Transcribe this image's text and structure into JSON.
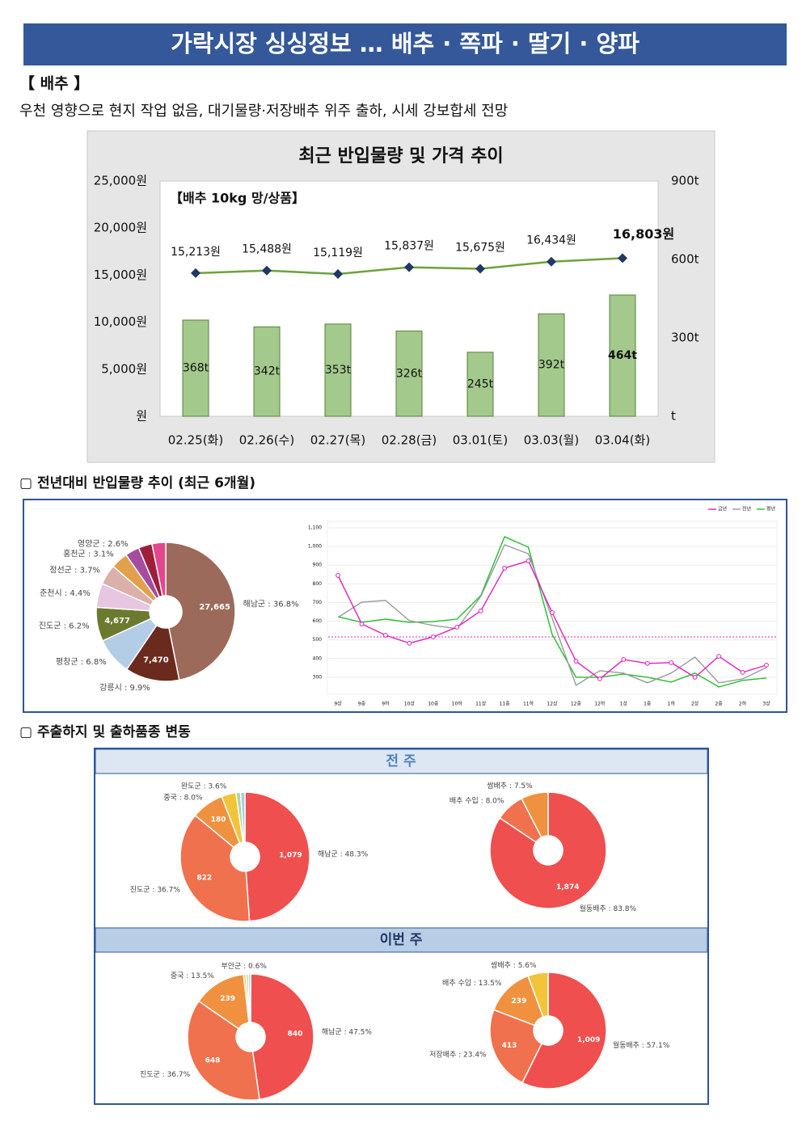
{
  "header": {
    "title": "가락시장 싱싱정보 … 배추 · 쪽파 · 딸기 · 양파"
  },
  "section1": {
    "heading": "【 배추 】",
    "summary": "우천 영향으로 현지 작업 없음, 대기물량·저장배추 위주 출하, 시세 강보합세 전망"
  },
  "section2": {
    "heading": "▢ 전년대비 반입물량 추이 (최근 6개월)"
  },
  "section3": {
    "heading": "▢ 주출하지 및 출하품종 변동",
    "weeks": [
      "전 주",
      "이번 주"
    ]
  },
  "chart_data": [
    {
      "type": "combo",
      "title": "최근 반입물량 및 가격 추이",
      "annotation": "【배추 10kg 망/상품】",
      "categories": [
        "02.25(화)",
        "02.26(수)",
        "02.27(목)",
        "02.28(금)",
        "03.01(토)",
        "03.03(월)",
        "03.04(화)"
      ],
      "series": [
        {
          "type": "bar",
          "axis": "y2",
          "color": "#a3c98c",
          "values": [
            368,
            342,
            353,
            326,
            245,
            392,
            464
          ],
          "value_labels": [
            "368t",
            "342t",
            "353t",
            "326t",
            "245t",
            "392t",
            "464t"
          ]
        },
        {
          "type": "line",
          "color": "#6fa13a",
          "marker_color": "#1f3864",
          "values": [
            15213,
            15488,
            15119,
            15837,
            15675,
            16434,
            16803
          ],
          "value_labels": [
            "15,213원",
            "15,488원",
            "15,119원",
            "15,837원",
            "15,675원",
            "16,434원",
            "16,803원"
          ]
        }
      ],
      "ylim": [
        0,
        25000
      ],
      "yticks": [
        {
          "value": 0,
          "label": "원"
        },
        {
          "value": 5000,
          "label": "5,000원"
        },
        {
          "value": 10000,
          "label": "10,000원"
        },
        {
          "value": 15000,
          "label": "15,000원"
        },
        {
          "value": 20000,
          "label": "20,000원"
        },
        {
          "value": 25000,
          "label": "25,000원"
        }
      ],
      "y2lim": [
        0,
        900
      ],
      "y2ticks": [
        {
          "value": 0,
          "label": "t"
        },
        {
          "value": 300,
          "label": "300t"
        },
        {
          "value": 600,
          "label": "600t"
        },
        {
          "value": 900,
          "label": "900t"
        }
      ]
    },
    {
      "type": "pie",
      "labels": [
        "해남군 : 36.8%",
        "강릉시 : 9.9%",
        "평창군 : 6.8%",
        "진도군 : 6.2%",
        "춘천시 : 4.4%",
        "정선군 : 3.7%",
        "홍천군 : 3.1%",
        "영양군 : 2.6%",
        null,
        null
      ],
      "values": [
        36.8,
        9.9,
        6.8,
        6.2,
        4.4,
        3.7,
        3.1,
        2.6,
        2.5,
        2.5
      ],
      "inner_labels": [
        "27,665",
        "7,470",
        null,
        "4,677",
        null,
        null,
        null,
        null,
        null,
        null
      ],
      "colors": [
        "#9c6a5a",
        "#6b2a1e",
        "#b4cde6",
        "#6b7a2e",
        "#e6c6e0",
        "#dbb0a8",
        "#e2a04a",
        "#a64ca0",
        "#9e1f3a",
        "#e2478e"
      ]
    },
    {
      "type": "line",
      "categories": [
        "9상",
        "9중",
        "9하",
        "10상",
        "10중",
        "10하",
        "11상",
        "11중",
        "11하",
        "12상",
        "12중",
        "12하",
        "1상",
        "1중",
        "1하",
        "2상",
        "2중",
        "2하",
        "3상"
      ],
      "series": [
        {
          "name": "금년",
          "color": "#e020c0",
          "marker": true,
          "values": [
            845,
            585,
            525,
            482,
            516,
            568,
            655,
            884,
            923,
            646,
            386,
            291,
            395,
            374,
            378,
            300,
            412,
            326,
            365
          ]
        },
        {
          "name": "전년",
          "color": "#9a9a9a",
          "values": [
            620,
            702,
            711,
            603,
            577,
            560,
            732,
            1009,
            961,
            616,
            257,
            335,
            322,
            270,
            322,
            408,
            270,
            291,
            352
          ]
        },
        {
          "name": "평년",
          "color": "#22c02a",
          "values": [
            624,
            594,
            611,
            594,
            598,
            611,
            737,
            1052,
            996,
            529,
            300,
            300,
            317,
            300,
            274,
            322,
            248,
            283,
            296
          ]
        }
      ],
      "reference_line": 516,
      "ylim": [
        200,
        1100
      ],
      "yticks": [
        300,
        400,
        500,
        600,
        700,
        800,
        900,
        {
          "value": 1000,
          "label": "1,000"
        },
        {
          "value": 1100,
          "label": "1,100"
        }
      ],
      "grid": true
    },
    {
      "type": "pie",
      "labels": [
        "해남군 : 48.3%",
        "진도군 : 36.7%",
        "중국 : 8.0%",
        "완도군 : 3.6%",
        null,
        null
      ],
      "values": [
        48.3,
        36.7,
        8.0,
        3.6,
        1.1,
        1.1
      ],
      "inner_labels": [
        "1,079",
        "822",
        "180",
        null,
        null,
        null
      ],
      "colors": [
        "#ef4f4f",
        "#f0714d",
        "#f0913f",
        "#f2c43a",
        "#a8d8a0",
        "#a8cce0"
      ]
    },
    {
      "type": "pie",
      "labels": [
        "월동배추 : 83.8%",
        "배추 수입 : 8.0%",
        "쌈배추 : 7.5%"
      ],
      "values": [
        83.8,
        8.0,
        7.5
      ],
      "inner_labels": [
        "1,874",
        null,
        null
      ],
      "colors": [
        "#ef4f4f",
        "#f0714d",
        "#f0913f"
      ]
    },
    {
      "type": "pie",
      "labels": [
        "해남군 : 47.5%",
        "진도군 : 36.7%",
        "중국 : 13.5%",
        "부안군 : 0.6%",
        null,
        null
      ],
      "values": [
        47.5,
        36.7,
        13.5,
        0.6,
        0.6,
        0.6
      ],
      "inner_labels": [
        "840",
        "648",
        "239",
        null,
        null,
        null
      ],
      "colors": [
        "#ef4f4f",
        "#f0714d",
        "#f0913f",
        "#f2c43a",
        "#a8d8a0",
        "#a8cce0"
      ]
    },
    {
      "type": "pie",
      "labels": [
        "월동배추 : 57.1%",
        "저장배추 : 23.4%",
        "배추 수입 : 13.5%",
        "쌈배추 : 5.6%"
      ],
      "values": [
        57.1,
        23.4,
        13.5,
        5.6
      ],
      "inner_labels": [
        "1,009",
        "413",
        "239",
        null
      ],
      "colors": [
        "#ef4f4f",
        "#f0714d",
        "#f0913f",
        "#f2c43a"
      ]
    }
  ]
}
